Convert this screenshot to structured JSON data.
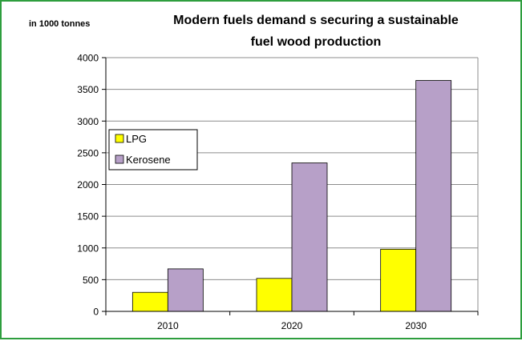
{
  "chart_data": {
    "type": "bar",
    "title_lines": [
      "Modern fuels demand s securing a sustainable",
      "fuel wood production"
    ],
    "unit_label": "in 1000 tonnes",
    "categories": [
      "2010",
      "2020",
      "2030"
    ],
    "series": [
      {
        "name": "LPG",
        "values": [
          300,
          520,
          980
        ],
        "color": "#ffff00"
      },
      {
        "name": "Kerosene",
        "values": [
          670,
          2340,
          3640
        ],
        "color": "#b7a0c8"
      }
    ],
    "ylim": [
      0,
      4000
    ],
    "yticks": [
      "0",
      "500",
      "1000",
      "1500",
      "2000",
      "2500",
      "3000",
      "3500",
      "4000"
    ],
    "grid": true,
    "legend_position": "left"
  },
  "colors": {
    "frame": "#2e9e3e"
  }
}
